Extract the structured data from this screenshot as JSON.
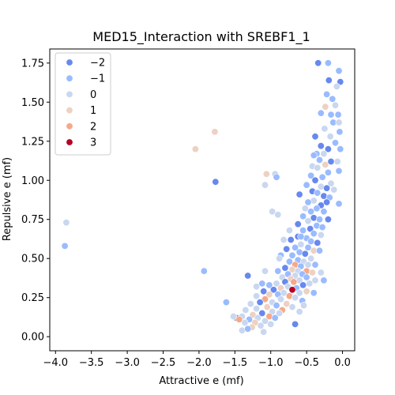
{
  "chart_data": {
    "type": "scatter",
    "title": "MED15_Interaction with SREBF1_1",
    "xlabel": "Attractive e (mf)",
    "ylabel": "Repulsive e (mf)",
    "xlim": [
      -4.08,
      0.17
    ],
    "ylim": [
      -0.09,
      1.84
    ],
    "xticks": [
      -4.0,
      -3.5,
      -3.0,
      -2.5,
      -2.0,
      -1.5,
      -1.0,
      -0.5,
      0.0
    ],
    "xtick_labels": [
      "−4.0",
      "−3.5",
      "−3.0",
      "−2.5",
      "−2.0",
      "−1.5",
      "−1.0",
      "−0.5",
      "0.0"
    ],
    "yticks": [
      0.0,
      0.25,
      0.5,
      0.75,
      1.0,
      1.25,
      1.5,
      1.75
    ],
    "ytick_labels": [
      "0.00",
      "0.25",
      "0.50",
      "0.75",
      "1.00",
      "1.25",
      "1.50",
      "1.75"
    ],
    "grid": false,
    "legend_position": "top-left",
    "hue_levels": [
      {
        "label": "−2",
        "value": -2,
        "color": "#6788ee"
      },
      {
        "label": "−1",
        "value": -1,
        "color": "#9abbff"
      },
      {
        "label": "0",
        "value": 0,
        "color": "#c9d7f0"
      },
      {
        "label": "1",
        "value": 1,
        "color": "#edd1c2"
      },
      {
        "label": "2",
        "value": 2,
        "color": "#f7a889"
      },
      {
        "label": "3",
        "value": 3,
        "color": "#e26952"
      }
    ],
    "highlight_color": "#b40426",
    "points": [
      {
        "x": -3.85,
        "y": 0.73,
        "h": 0
      },
      {
        "x": -3.87,
        "y": 0.58,
        "h": -1
      },
      {
        "x": -2.05,
        "y": 1.2,
        "h": 1
      },
      {
        "x": -1.78,
        "y": 1.31,
        "h": 1
      },
      {
        "x": -1.77,
        "y": 0.99,
        "h": -2
      },
      {
        "x": -1.93,
        "y": 0.42,
        "h": -1
      },
      {
        "x": -1.62,
        "y": 0.22,
        "h": -1
      },
      {
        "x": -0.34,
        "y": 1.75,
        "h": -2
      },
      {
        "x": -0.2,
        "y": 1.75,
        "h": -1
      },
      {
        "x": -0.05,
        "y": 1.7,
        "h": -1
      },
      {
        "x": -0.19,
        "y": 1.64,
        "h": -2
      },
      {
        "x": -0.03,
        "y": 1.63,
        "h": -2
      },
      {
        "x": -0.22,
        "y": 1.55,
        "h": -1
      },
      {
        "x": -0.08,
        "y": 1.6,
        "h": 0
      },
      {
        "x": -0.14,
        "y": 1.52,
        "h": -1
      },
      {
        "x": -0.24,
        "y": 1.47,
        "h": 1
      },
      {
        "x": -0.1,
        "y": 1.48,
        "h": 0
      },
      {
        "x": -0.06,
        "y": 1.42,
        "h": -1
      },
      {
        "x": -0.16,
        "y": 1.42,
        "h": -1
      },
      {
        "x": -0.3,
        "y": 1.43,
        "h": -1
      },
      {
        "x": -0.13,
        "y": 1.37,
        "h": -1
      },
      {
        "x": -0.05,
        "y": 1.37,
        "h": 0
      },
      {
        "x": -0.25,
        "y": 1.33,
        "h": 0
      },
      {
        "x": -0.38,
        "y": 1.28,
        "h": -2
      },
      {
        "x": -0.04,
        "y": 1.31,
        "h": -1
      },
      {
        "x": -0.17,
        "y": 1.28,
        "h": 0
      },
      {
        "x": -0.1,
        "y": 1.24,
        "h": -1
      },
      {
        "x": -0.2,
        "y": 1.2,
        "h": -2
      },
      {
        "x": -0.03,
        "y": 1.2,
        "h": -1
      },
      {
        "x": -0.3,
        "y": 1.22,
        "h": -2
      },
      {
        "x": -0.36,
        "y": 1.17,
        "h": -1
      },
      {
        "x": -0.26,
        "y": 1.17,
        "h": 0
      },
      {
        "x": -0.4,
        "y": 1.16,
        "h": -1
      },
      {
        "x": -0.16,
        "y": 1.12,
        "h": -2
      },
      {
        "x": -0.32,
        "y": 1.13,
        "h": -1
      },
      {
        "x": -0.07,
        "y": 1.12,
        "h": 0
      },
      {
        "x": -0.24,
        "y": 1.1,
        "h": 1
      },
      {
        "x": -0.42,
        "y": 1.09,
        "h": 0
      },
      {
        "x": -0.35,
        "y": 1.08,
        "h": 0
      },
      {
        "x": -0.05,
        "y": 1.06,
        "h": -1
      },
      {
        "x": -0.2,
        "y": 1.05,
        "h": -1
      },
      {
        "x": -0.44,
        "y": 1.03,
        "h": -1
      },
      {
        "x": -0.28,
        "y": 1.02,
        "h": -1
      },
      {
        "x": -0.38,
        "y": 1.0,
        "h": -2
      },
      {
        "x": -0.16,
        "y": 0.98,
        "h": 0
      },
      {
        "x": -0.5,
        "y": 0.97,
        "h": -1
      },
      {
        "x": -0.3,
        "y": 0.96,
        "h": 0
      },
      {
        "x": -0.22,
        "y": 0.95,
        "h": -2
      },
      {
        "x": -0.12,
        "y": 0.94,
        "h": 0
      },
      {
        "x": -0.42,
        "y": 0.93,
        "h": -2
      },
      {
        "x": -0.35,
        "y": 0.92,
        "h": -1
      },
      {
        "x": -0.6,
        "y": 0.91,
        "h": -2
      },
      {
        "x": -0.26,
        "y": 0.9,
        "h": -2
      },
      {
        "x": -0.18,
        "y": 0.89,
        "h": -1
      },
      {
        "x": -0.4,
        "y": 0.87,
        "h": 0
      },
      {
        "x": -0.48,
        "y": 0.86,
        "h": -1
      },
      {
        "x": -0.22,
        "y": 0.86,
        "h": -2
      },
      {
        "x": -0.3,
        "y": 0.84,
        "h": -2
      },
      {
        "x": -0.05,
        "y": 0.85,
        "h": -1
      },
      {
        "x": -0.52,
        "y": 0.82,
        "h": 0
      },
      {
        "x": -0.36,
        "y": 0.82,
        "h": -1
      },
      {
        "x": -0.44,
        "y": 0.8,
        "h": -1
      },
      {
        "x": -0.26,
        "y": 0.8,
        "h": -1
      },
      {
        "x": -0.55,
        "y": 0.77,
        "h": -1
      },
      {
        "x": -0.4,
        "y": 0.76,
        "h": -2
      },
      {
        "x": -0.32,
        "y": 0.75,
        "h": -1
      },
      {
        "x": -0.2,
        "y": 0.75,
        "h": -2
      },
      {
        "x": -0.48,
        "y": 0.74,
        "h": 0
      },
      {
        "x": -0.62,
        "y": 0.72,
        "h": -2
      },
      {
        "x": -0.36,
        "y": 0.71,
        "h": -1
      },
      {
        "x": -0.28,
        "y": 0.7,
        "h": -1
      },
      {
        "x": -0.45,
        "y": 0.69,
        "h": -2
      },
      {
        "x": -0.55,
        "y": 0.68,
        "h": -1
      },
      {
        "x": -0.4,
        "y": 0.66,
        "h": -1
      },
      {
        "x": -0.3,
        "y": 0.65,
        "h": 0
      },
      {
        "x": -0.62,
        "y": 0.64,
        "h": -2
      },
      {
        "x": -0.5,
        "y": 0.63,
        "h": -1
      },
      {
        "x": -0.72,
        "y": 0.62,
        "h": -2
      },
      {
        "x": -0.44,
        "y": 0.61,
        "h": -1
      },
      {
        "x": -0.35,
        "y": 0.6,
        "h": -2
      },
      {
        "x": -0.58,
        "y": 0.59,
        "h": 0
      },
      {
        "x": -0.66,
        "y": 0.57,
        "h": -1
      },
      {
        "x": -0.48,
        "y": 0.57,
        "h": -1
      },
      {
        "x": -0.4,
        "y": 0.55,
        "h": 1
      },
      {
        "x": -0.78,
        "y": 0.56,
        "h": -2
      },
      {
        "x": -0.6,
        "y": 0.54,
        "h": -1
      },
      {
        "x": -0.52,
        "y": 0.53,
        "h": -2
      },
      {
        "x": -0.7,
        "y": 0.52,
        "h": -1
      },
      {
        "x": -0.86,
        "y": 0.52,
        "h": -1
      },
      {
        "x": -0.44,
        "y": 0.5,
        "h": 0
      },
      {
        "x": -0.62,
        "y": 0.49,
        "h": -1
      },
      {
        "x": -0.54,
        "y": 0.48,
        "h": 0
      },
      {
        "x": -0.74,
        "y": 0.48,
        "h": -1
      },
      {
        "x": -0.48,
        "y": 0.46,
        "h": 0
      },
      {
        "x": -0.66,
        "y": 0.46,
        "h": 2
      },
      {
        "x": -0.58,
        "y": 0.45,
        "h": -1
      },
      {
        "x": -0.8,
        "y": 0.44,
        "h": -2
      },
      {
        "x": -0.7,
        "y": 0.43,
        "h": 1
      },
      {
        "x": -0.5,
        "y": 0.42,
        "h": 2
      },
      {
        "x": -0.62,
        "y": 0.42,
        "h": 0
      },
      {
        "x": -0.9,
        "y": 0.42,
        "h": -1
      },
      {
        "x": -0.42,
        "y": 0.41,
        "h": 1
      },
      {
        "x": -0.76,
        "y": 0.4,
        "h": -1
      },
      {
        "x": -0.56,
        "y": 0.4,
        "h": -1
      },
      {
        "x": -0.66,
        "y": 0.39,
        "h": 0
      },
      {
        "x": -0.84,
        "y": 0.38,
        "h": 0
      },
      {
        "x": -0.5,
        "y": 0.38,
        "h": -1
      },
      {
        "x": -0.72,
        "y": 0.37,
        "h": 1
      },
      {
        "x": -0.6,
        "y": 0.36,
        "h": 0
      },
      {
        "x": -0.38,
        "y": 0.36,
        "h": 0
      },
      {
        "x": -0.8,
        "y": 0.35,
        "h": -2
      },
      {
        "x": -0.68,
        "y": 0.35,
        "h": 2
      },
      {
        "x": -0.92,
        "y": 0.34,
        "h": 0
      },
      {
        "x": -0.55,
        "y": 0.33,
        "h": -2
      },
      {
        "x": -1.02,
        "y": 0.33,
        "h": -1
      },
      {
        "x": -0.76,
        "y": 0.32,
        "h": 0
      },
      {
        "x": -0.86,
        "y": 0.31,
        "h": 1
      },
      {
        "x": -0.64,
        "y": 0.31,
        "h": -1
      },
      {
        "x": -0.7,
        "y": 0.3,
        "h": 3
      },
      {
        "x": -0.96,
        "y": 0.3,
        "h": -2
      },
      {
        "x": -0.5,
        "y": 0.29,
        "h": 1
      },
      {
        "x": -1.1,
        "y": 0.29,
        "h": -2
      },
      {
        "x": -0.82,
        "y": 0.28,
        "h": 0
      },
      {
        "x": -0.6,
        "y": 0.28,
        "h": 0
      },
      {
        "x": -1.02,
        "y": 0.27,
        "h": 1
      },
      {
        "x": -0.9,
        "y": 0.27,
        "h": -1
      },
      {
        "x": -0.74,
        "y": 0.26,
        "h": 2
      },
      {
        "x": -1.2,
        "y": 0.26,
        "h": 0
      },
      {
        "x": -0.66,
        "y": 0.25,
        "h": 0
      },
      {
        "x": -1.08,
        "y": 0.24,
        "h": 2
      },
      {
        "x": -0.86,
        "y": 0.24,
        "h": 0
      },
      {
        "x": -0.56,
        "y": 0.23,
        "h": -1
      },
      {
        "x": -0.98,
        "y": 0.22,
        "h": 0
      },
      {
        "x": -1.15,
        "y": 0.22,
        "h": -2
      },
      {
        "x": -0.78,
        "y": 0.21,
        "h": 1
      },
      {
        "x": -1.28,
        "y": 0.21,
        "h": 0
      },
      {
        "x": -0.92,
        "y": 0.2,
        "h": -1
      },
      {
        "x": -1.05,
        "y": 0.19,
        "h": 1
      },
      {
        "x": -0.7,
        "y": 0.19,
        "h": 0
      },
      {
        "x": -1.2,
        "y": 0.18,
        "h": 0
      },
      {
        "x": -0.84,
        "y": 0.17,
        "h": 2
      },
      {
        "x": -1.35,
        "y": 0.17,
        "h": 0
      },
      {
        "x": -0.98,
        "y": 0.16,
        "h": 0
      },
      {
        "x": -1.12,
        "y": 0.15,
        "h": -2
      },
      {
        "x": -0.88,
        "y": 0.15,
        "h": 0
      },
      {
        "x": -1.25,
        "y": 0.14,
        "h": 1
      },
      {
        "x": -1.4,
        "y": 0.13,
        "h": 0
      },
      {
        "x": -1.02,
        "y": 0.13,
        "h": 2
      },
      {
        "x": -1.18,
        "y": 0.12,
        "h": 0
      },
      {
        "x": -1.48,
        "y": 0.12,
        "h": -2
      },
      {
        "x": -0.94,
        "y": 0.12,
        "h": -1
      },
      {
        "x": -1.3,
        "y": 0.11,
        "h": -1
      },
      {
        "x": -1.44,
        "y": 0.11,
        "h": 2
      },
      {
        "x": -1.08,
        "y": 0.1,
        "h": 0
      },
      {
        "x": -1.22,
        "y": 0.09,
        "h": 1
      },
      {
        "x": -1.36,
        "y": 0.09,
        "h": 0
      },
      {
        "x": -1.0,
        "y": 0.08,
        "h": 0
      },
      {
        "x": -1.14,
        "y": 0.07,
        "h": 0
      },
      {
        "x": -0.66,
        "y": 0.08,
        "h": -2
      },
      {
        "x": -1.26,
        "y": 0.06,
        "h": 1
      },
      {
        "x": -1.4,
        "y": 0.04,
        "h": 0
      },
      {
        "x": -1.1,
        "y": 0.03,
        "h": 0
      },
      {
        "x": -1.32,
        "y": 0.05,
        "h": -1
      },
      {
        "x": -0.6,
        "y": 0.16,
        "h": 0
      },
      {
        "x": -0.46,
        "y": 0.34,
        "h": 0
      },
      {
        "x": -0.38,
        "y": 0.46,
        "h": -1
      },
      {
        "x": -0.32,
        "y": 0.55,
        "h": -1
      },
      {
        "x": -0.3,
        "y": 0.41,
        "h": 0
      },
      {
        "x": -1.12,
        "y": 0.34,
        "h": -1
      },
      {
        "x": -1.2,
        "y": 0.32,
        "h": 0
      },
      {
        "x": -1.32,
        "y": 0.39,
        "h": -2
      },
      {
        "x": -1.08,
        "y": 0.42,
        "h": 0
      },
      {
        "x": -0.9,
        "y": 0.78,
        "h": 0
      },
      {
        "x": -0.98,
        "y": 0.8,
        "h": 0
      },
      {
        "x": -1.08,
        "y": 0.97,
        "h": 0
      },
      {
        "x": -1.06,
        "y": 1.04,
        "h": 1
      },
      {
        "x": -0.94,
        "y": 1.04,
        "h": 0
      },
      {
        "x": -0.92,
        "y": 1.02,
        "h": -1
      },
      {
        "x": -0.82,
        "y": 0.62,
        "h": 0
      },
      {
        "x": -0.88,
        "y": 0.5,
        "h": 0
      },
      {
        "x": -0.74,
        "y": 0.68,
        "h": 0
      },
      {
        "x": -0.58,
        "y": 0.64,
        "h": -1
      },
      {
        "x": -0.26,
        "y": 0.36,
        "h": -1
      },
      {
        "x": -0.4,
        "y": 0.28,
        "h": -1
      },
      {
        "x": -0.54,
        "y": 0.2,
        "h": 0
      },
      {
        "x": -1.52,
        "y": 0.13,
        "h": 0
      }
    ]
  }
}
